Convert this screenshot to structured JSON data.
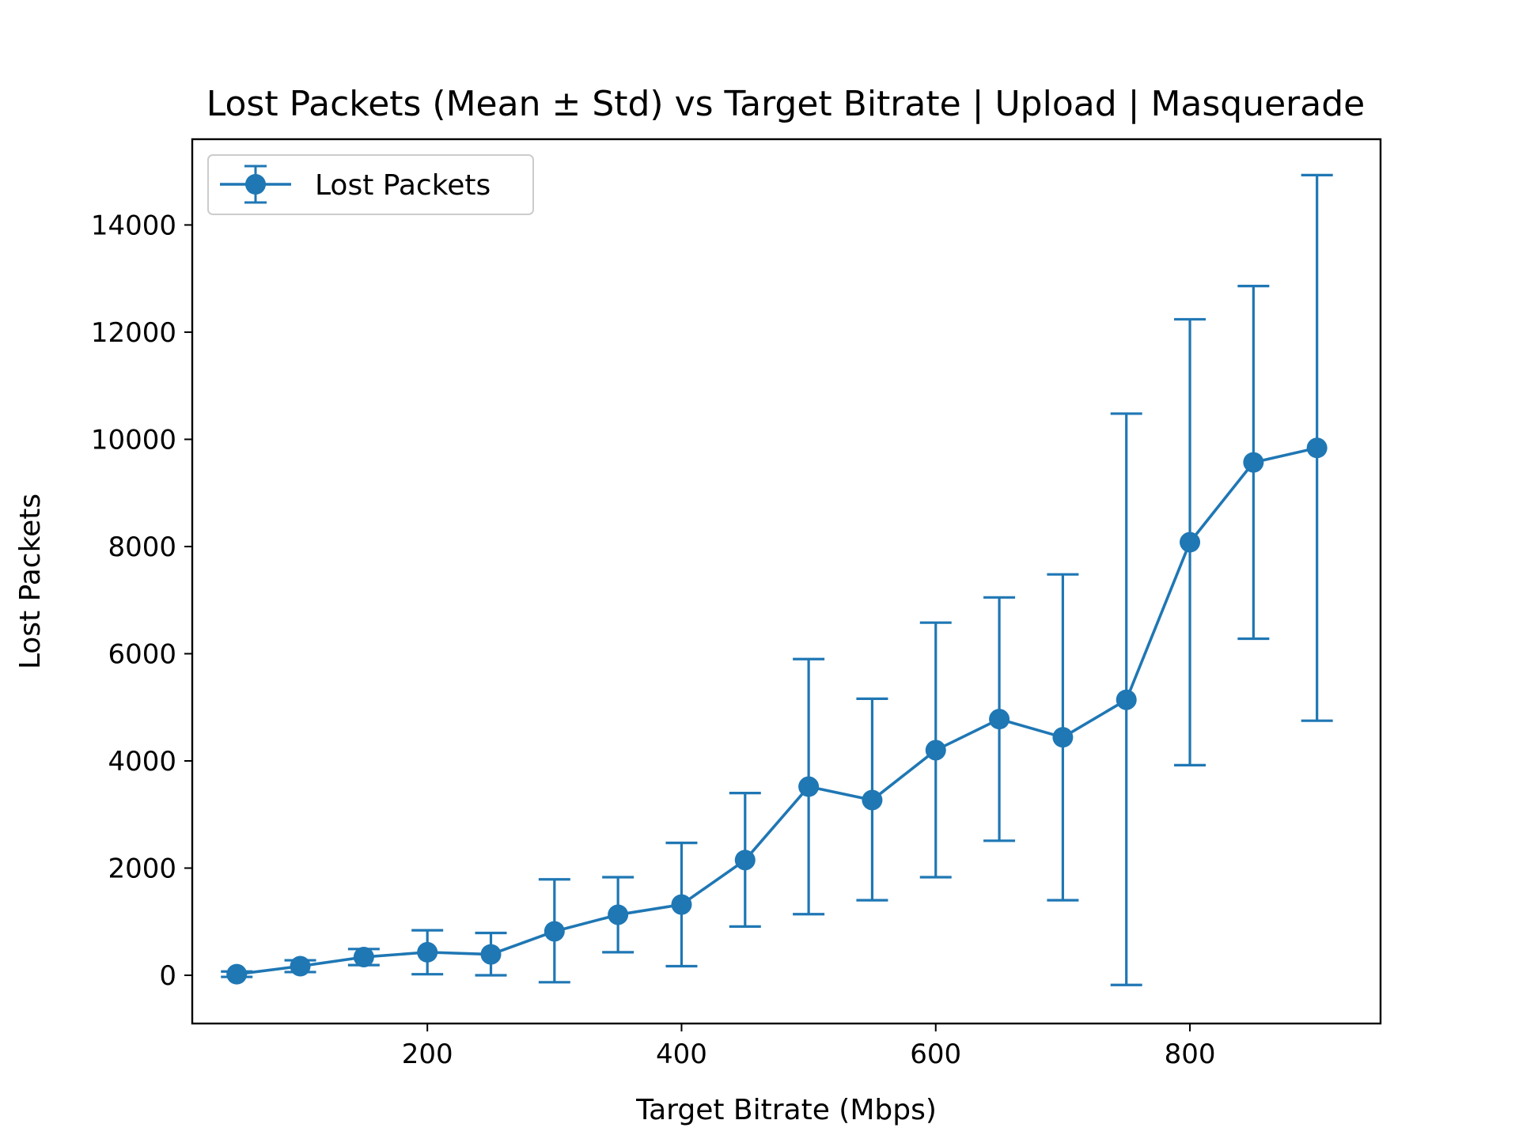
{
  "chart_data": {
    "type": "line",
    "title": "Lost Packets (Mean ± Std) vs Target Bitrate | Upload | Masquerade",
    "xlabel": "Target Bitrate (Mbps)",
    "ylabel": "Lost Packets",
    "xlim": [
      15,
      950
    ],
    "ylim": [
      -900,
      15600
    ],
    "x_ticks": [
      200,
      400,
      600,
      800
    ],
    "y_ticks": [
      0,
      2000,
      4000,
      6000,
      8000,
      10000,
      12000,
      14000
    ],
    "grid": false,
    "legend_position": "top-left",
    "series": [
      {
        "name": "Lost Packets",
        "color": "#1f77b4",
        "marker": "circle",
        "x": [
          50,
          100,
          150,
          200,
          250,
          300,
          350,
          400,
          450,
          500,
          550,
          600,
          650,
          700,
          750,
          800,
          850,
          900
        ],
        "y": [
          20,
          170,
          340,
          430,
          390,
          820,
          1130,
          1320,
          2150,
          3520,
          3270,
          4200,
          4780,
          4440,
          5140,
          8080,
          9570,
          9840
        ],
        "err_low": [
          -30,
          60,
          190,
          20,
          0,
          -130,
          430,
          170,
          910,
          1140,
          1400,
          1830,
          2510,
          1400,
          -180,
          3920,
          6280,
          4750
        ],
        "err_high": [
          70,
          280,
          490,
          840,
          790,
          1790,
          1830,
          2470,
          3400,
          5900,
          5160,
          6580,
          7050,
          7480,
          10480,
          12240,
          12860,
          14930
        ]
      }
    ]
  }
}
